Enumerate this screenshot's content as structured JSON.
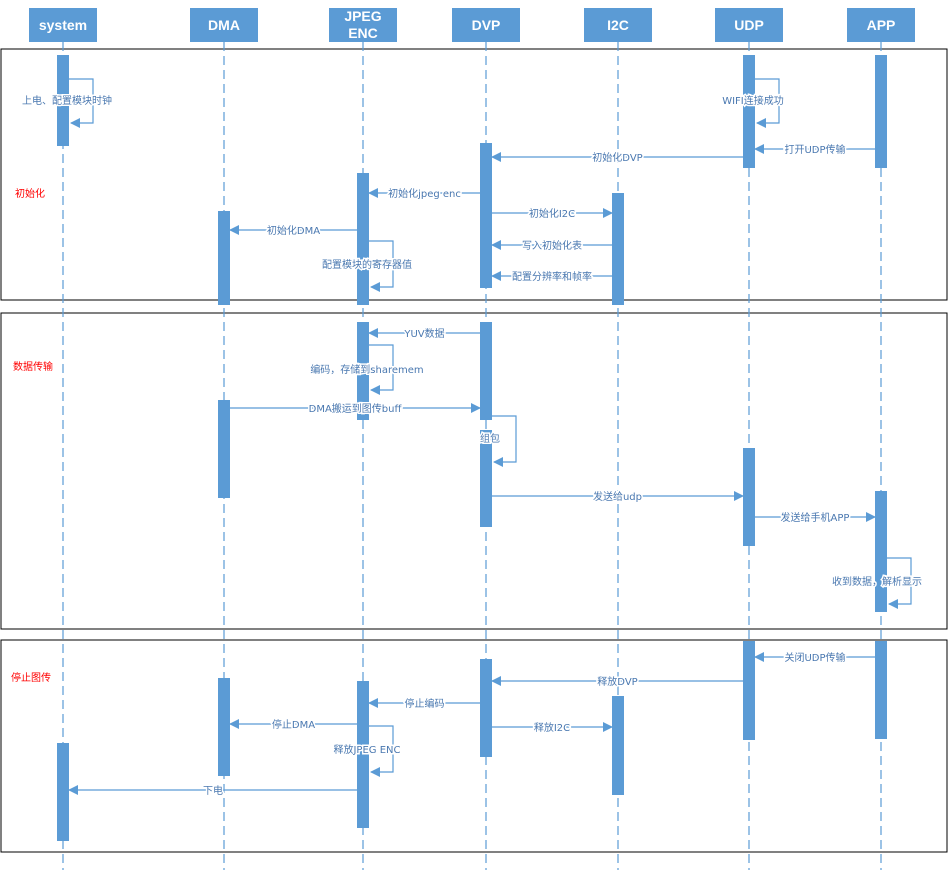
{
  "colors": {
    "box": "#5b9bd5",
    "line": "#5b9bd5",
    "section_label": "#ff0000",
    "frame": "#000000"
  },
  "participants": [
    {
      "id": "system",
      "label": [
        "system"
      ]
    },
    {
      "id": "dma",
      "label": [
        "DMA"
      ]
    },
    {
      "id": "jpeg",
      "label": [
        "JPEG",
        "ENC"
      ]
    },
    {
      "id": "dvp",
      "label": [
        "DVP"
      ]
    },
    {
      "id": "i2c",
      "label": [
        "I2C"
      ]
    },
    {
      "id": "udp",
      "label": [
        "UDP"
      ]
    },
    {
      "id": "app",
      "label": [
        "APP"
      ]
    }
  ],
  "sections": [
    {
      "label": "初始化"
    },
    {
      "label": "数据传输"
    },
    {
      "label": "停止图传"
    }
  ],
  "messages": [
    {
      "from": "system",
      "to": "system",
      "label": "上电、配置模块时钟"
    },
    {
      "from": "udp",
      "to": "udp",
      "label": "WIFI连接成功"
    },
    {
      "from": "app",
      "to": "udp",
      "label": "打开UDP传输"
    },
    {
      "from": "udp",
      "to": "dvp",
      "label": "初始化DVP"
    },
    {
      "from": "dvp",
      "to": "jpeg",
      "label": "初始化jpeg enc"
    },
    {
      "from": "dvp",
      "to": "i2c",
      "label": "初始化I2C"
    },
    {
      "from": "jpeg",
      "to": "dma",
      "label": "初始化DMA"
    },
    {
      "from": "i2c",
      "to": "dvp",
      "label": "写入初始化表"
    },
    {
      "from": "jpeg",
      "to": "jpeg",
      "label": "配置模块的寄存器值"
    },
    {
      "from": "i2c",
      "to": "dvp",
      "label": "配置分辨率和帧率"
    },
    {
      "from": "dvp",
      "to": "jpeg",
      "label": "YUV数据"
    },
    {
      "from": "jpeg",
      "to": "jpeg",
      "label": "编码，存储到sharemem"
    },
    {
      "from": "dma",
      "to": "dvp",
      "label": "DMA搬运到图传buff"
    },
    {
      "from": "dvp",
      "to": "dvp",
      "label": "组包"
    },
    {
      "from": "dvp",
      "to": "udp",
      "label": "发送给udp"
    },
    {
      "from": "udp",
      "to": "app",
      "label": "发送给手机APP"
    },
    {
      "from": "app",
      "to": "app",
      "label": "收到数据，解析显示"
    },
    {
      "from": "app",
      "to": "udp",
      "label": "关闭UDP传输"
    },
    {
      "from": "udp",
      "to": "dvp",
      "label": "释放DVP"
    },
    {
      "from": "dvp",
      "to": "jpeg",
      "label": "停止编码"
    },
    {
      "from": "dvp",
      "to": "i2c",
      "label": "释放I2C"
    },
    {
      "from": "jpeg",
      "to": "dma",
      "label": "停止DMA"
    },
    {
      "from": "jpeg",
      "to": "jpeg",
      "label": "释放JPEG ENC"
    },
    {
      "from": "jpeg",
      "to": "system",
      "label": "下电"
    }
  ]
}
